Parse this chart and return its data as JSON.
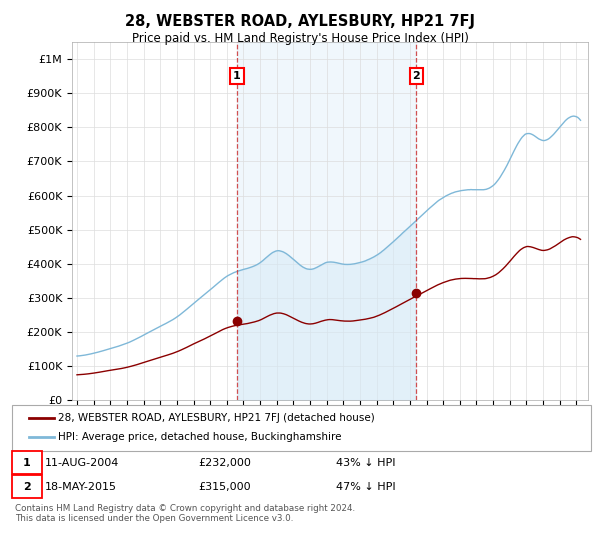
{
  "title": "28, WEBSTER ROAD, AYLESBURY, HP21 7FJ",
  "subtitle": "Price paid vs. HM Land Registry's House Price Index (HPI)",
  "ylim": [
    0,
    1050000
  ],
  "yticks": [
    0,
    100000,
    200000,
    300000,
    400000,
    500000,
    600000,
    700000,
    800000,
    900000,
    1000000
  ],
  "xlim_start": 1994.7,
  "xlim_end": 2025.7,
  "hpi_color": "#7fb8d8",
  "hpi_fill_color": "#d6eaf8",
  "property_color": "#8b0000",
  "transaction1_x": 2004.61,
  "transaction1_y": 232000,
  "transaction2_x": 2015.38,
  "transaction2_y": 315000,
  "transaction1_label": "11-AUG-2004",
  "transaction1_price": "£232,000",
  "transaction1_note": "43% ↓ HPI",
  "transaction2_label": "18-MAY-2015",
  "transaction2_price": "£315,000",
  "transaction2_note": "47% ↓ HPI",
  "legend_line1": "28, WEBSTER ROAD, AYLESBURY, HP21 7FJ (detached house)",
  "legend_line2": "HPI: Average price, detached house, Buckinghamshire",
  "footnote": "Contains HM Land Registry data © Crown copyright and database right 2024.\nThis data is licensed under the Open Government Licence v3.0.",
  "background_color": "#ffffff",
  "grid_color": "#dddddd"
}
